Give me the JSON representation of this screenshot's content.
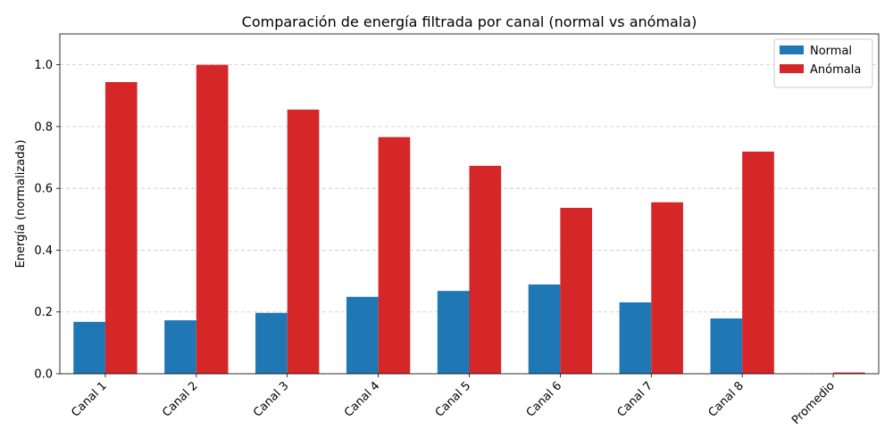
{
  "chart_data": {
    "type": "bar",
    "title": "Comparación de energía filtrada por canal (normal vs anómala)",
    "xlabel": "",
    "ylabel": "Energía (normalizada)",
    "categories": [
      "Canal 1",
      "Canal 2",
      "Canal 3",
      "Canal 4",
      "Canal 5",
      "Canal 6",
      "Canal 7",
      "Canal 8",
      "Promedio"
    ],
    "series": [
      {
        "name": "Normal",
        "color": "#1f77b4",
        "values": [
          0.168,
          0.173,
          0.197,
          0.249,
          0.268,
          0.289,
          0.231,
          0.179,
          0.0
        ]
      },
      {
        "name": "Anómala",
        "color": "#d62728",
        "values": [
          0.944,
          1.0,
          0.855,
          0.766,
          0.673,
          0.537,
          0.555,
          0.719,
          0.004
        ]
      }
    ],
    "ylim": [
      0,
      1.1
    ],
    "yticks": [
      "0.0",
      "0.2",
      "0.4",
      "0.6",
      "0.8",
      "1.0"
    ],
    "grid": "horizontal dashed",
    "legend_position": "top-right",
    "xtick_rotation": 45
  }
}
